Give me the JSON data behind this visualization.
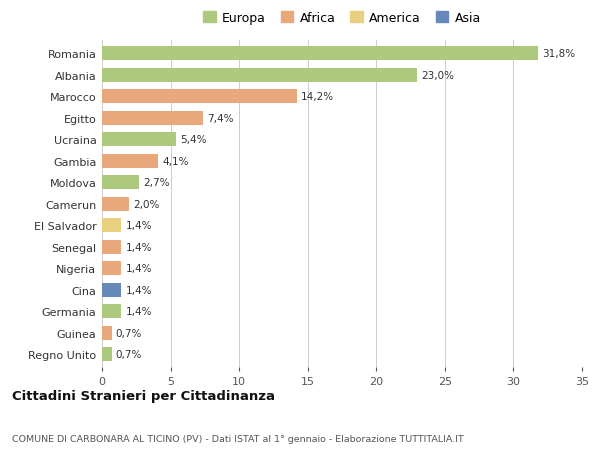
{
  "countries": [
    "Romania",
    "Albania",
    "Marocco",
    "Egitto",
    "Ucraina",
    "Gambia",
    "Moldova",
    "Camerun",
    "El Salvador",
    "Senegal",
    "Nigeria",
    "Cina",
    "Germania",
    "Guinea",
    "Regno Unito"
  ],
  "values": [
    31.8,
    23.0,
    14.2,
    7.4,
    5.4,
    4.1,
    2.7,
    2.0,
    1.4,
    1.4,
    1.4,
    1.4,
    1.4,
    0.7,
    0.7
  ],
  "labels": [
    "31,8%",
    "23,0%",
    "14,2%",
    "7,4%",
    "5,4%",
    "4,1%",
    "2,7%",
    "2,0%",
    "1,4%",
    "1,4%",
    "1,4%",
    "1,4%",
    "1,4%",
    "0,7%",
    "0,7%"
  ],
  "continents": [
    "Europa",
    "Europa",
    "Africa",
    "Africa",
    "Europa",
    "Africa",
    "Europa",
    "Africa",
    "America",
    "Africa",
    "Africa",
    "Asia",
    "Europa",
    "Africa",
    "Europa"
  ],
  "colors": {
    "Europa": "#adc97e",
    "Africa": "#e8a87c",
    "America": "#e8d080",
    "Asia": "#6688bb"
  },
  "xlim": [
    0,
    35
  ],
  "xticks": [
    0,
    5,
    10,
    15,
    20,
    25,
    30,
    35
  ],
  "title": "Cittadini Stranieri per Cittadinanza",
  "subtitle": "COMUNE DI CARBONARA AL TICINO (PV) - Dati ISTAT al 1° gennaio - Elaborazione TUTTITALIA.IT",
  "background_color": "#ffffff",
  "grid_color": "#cccccc",
  "bar_height": 0.65,
  "legend_order": [
    "Europa",
    "Africa",
    "America",
    "Asia"
  ]
}
